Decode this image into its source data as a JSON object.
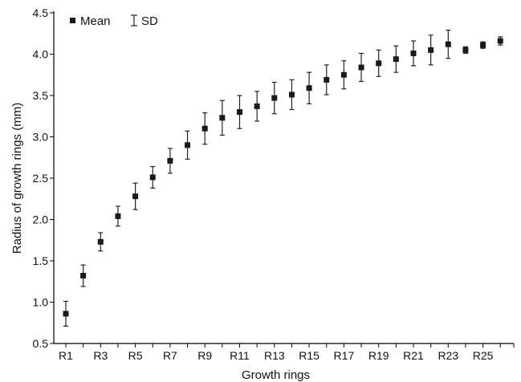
{
  "chart_data": {
    "type": "scatter",
    "xlabel": "Growth rings",
    "ylabel": "Radius of growth rings (mm)",
    "ylim": [
      0.5,
      4.5
    ],
    "yticks": [
      "0.5",
      "1.0",
      "1.5",
      "2.0",
      "2.5",
      "3.0",
      "3.5",
      "4.0",
      "4.5"
    ],
    "categories": [
      "R1",
      "R2",
      "R3",
      "R4",
      "R5",
      "R6",
      "R7",
      "R8",
      "R9",
      "R10",
      "R11",
      "R12",
      "R13",
      "R14",
      "R15",
      "R16",
      "R17",
      "R18",
      "R19",
      "R20",
      "R21",
      "R22",
      "R23",
      "R24",
      "R25",
      "R26"
    ],
    "xtick_labels": [
      "R1",
      "R3",
      "R5",
      "R7",
      "R9",
      "R11",
      "R13",
      "R15",
      "R17",
      "R19",
      "R21",
      "R23",
      "R25"
    ],
    "series": [
      {
        "name": "Mean",
        "values": [
          0.86,
          1.32,
          1.73,
          2.04,
          2.28,
          2.51,
          2.71,
          2.9,
          3.1,
          3.23,
          3.3,
          3.37,
          3.47,
          3.51,
          3.59,
          3.69,
          3.75,
          3.84,
          3.89,
          3.94,
          4.01,
          4.05,
          4.12,
          4.05,
          4.11,
          4.16
        ],
        "sd": [
          0.15,
          0.13,
          0.11,
          0.12,
          0.16,
          0.13,
          0.15,
          0.17,
          0.19,
          0.21,
          0.2,
          0.18,
          0.19,
          0.18,
          0.19,
          0.18,
          0.17,
          0.17,
          0.16,
          0.16,
          0.15,
          0.18,
          0.17,
          0.02,
          0.02,
          0.05
        ]
      }
    ],
    "legend": {
      "position": "top-left",
      "mean_label": "Mean",
      "sd_label": "SD"
    },
    "grid": false
  }
}
